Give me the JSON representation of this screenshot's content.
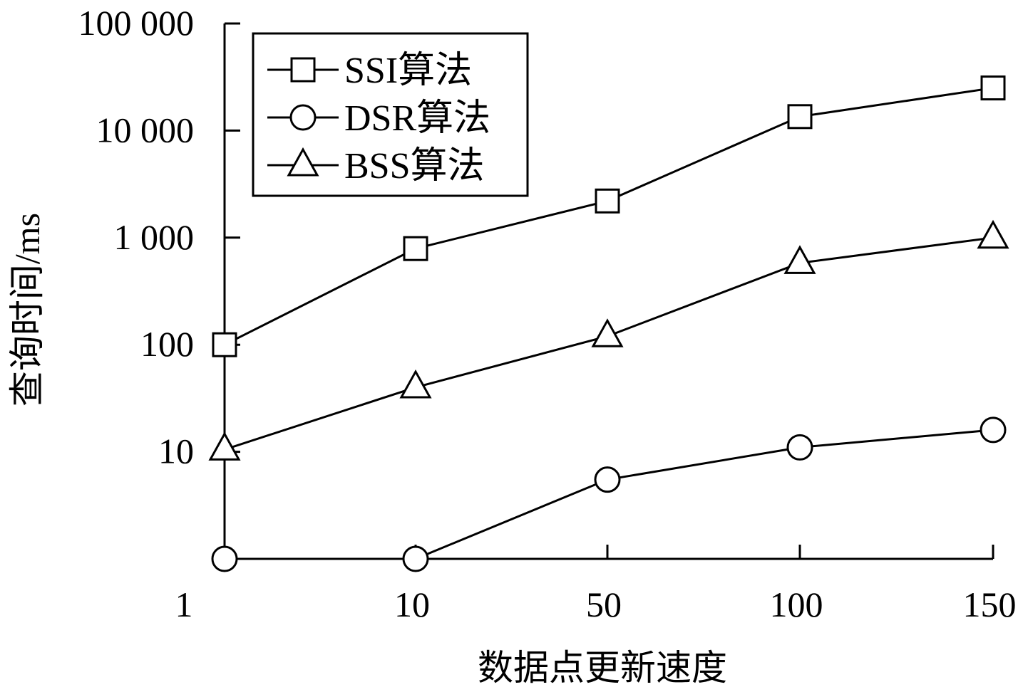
{
  "chart_data": {
    "type": "line",
    "title": "",
    "xlabel": "数据点更新速度",
    "ylabel": "查询时间/ms",
    "x_categories": [
      "1",
      "10",
      "50",
      "100",
      "150"
    ],
    "y_scale": "log",
    "ylim": [
      1,
      100000
    ],
    "yticks": [
      {
        "value": 10,
        "label": "10"
      },
      {
        "value": 100,
        "label": "100"
      },
      {
        "value": 1000,
        "label": "1 000"
      },
      {
        "value": 10000,
        "label": "10 000"
      },
      {
        "value": 100000,
        "label": "100 000"
      }
    ],
    "grid": false,
    "legend_position": "top-left",
    "series": [
      {
        "name": "SSI算法",
        "marker": "square",
        "values": [
          100,
          790,
          2200,
          13500,
          25000
        ]
      },
      {
        "name": "DSR算法",
        "marker": "circle",
        "values": [
          1,
          1,
          5.5,
          11,
          16
        ]
      },
      {
        "name": "BSS算法",
        "marker": "triangle",
        "values": [
          10.5,
          40,
          120,
          580,
          1000
        ]
      }
    ]
  }
}
